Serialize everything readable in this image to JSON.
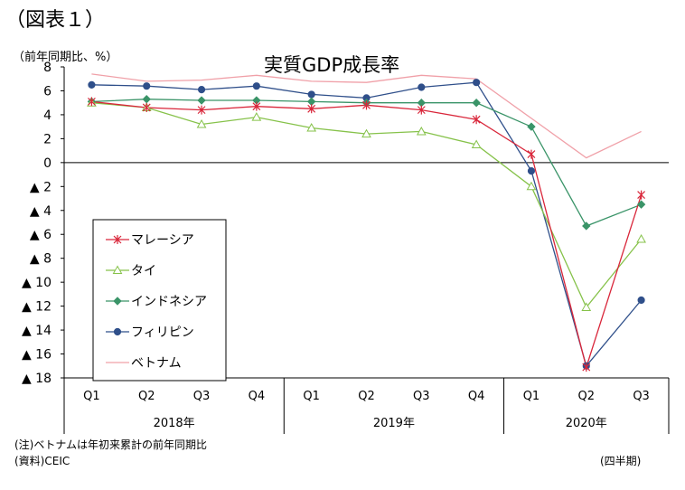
{
  "figure_label": "（図表１）",
  "footnotes": {
    "note": "(注)ベトナムは年初来累計の前年同期比",
    "source": "(資料)CEIC",
    "x_unit": "(四半期)"
  },
  "chart_data": {
    "type": "line",
    "title": "実質GDP成長率",
    "ylabel": "（前年同期比、%）",
    "ylim": [
      -18,
      8
    ],
    "yticks": [
      {
        "value": 8,
        "label": "8"
      },
      {
        "value": 6,
        "label": "6"
      },
      {
        "value": 4,
        "label": "4"
      },
      {
        "value": 2,
        "label": "2"
      },
      {
        "value": 0,
        "label": "0"
      },
      {
        "value": -2,
        "label": "▲ 2"
      },
      {
        "value": -4,
        "label": "▲ 4"
      },
      {
        "value": -6,
        "label": "▲ 6"
      },
      {
        "value": -8,
        "label": "▲ 8"
      },
      {
        "value": -10,
        "label": "▲ 10"
      },
      {
        "value": -12,
        "label": "▲ 12"
      },
      {
        "value": -14,
        "label": "▲ 14"
      },
      {
        "value": -16,
        "label": "▲ 16"
      },
      {
        "value": -18,
        "label": "▲ 18"
      }
    ],
    "categories": [
      "Q1",
      "Q2",
      "Q3",
      "Q4",
      "Q1",
      "Q2",
      "Q3",
      "Q4",
      "Q1",
      "Q2",
      "Q3"
    ],
    "year_groups": [
      {
        "label": "2018年",
        "count": 4
      },
      {
        "label": "2019年",
        "count": 4
      },
      {
        "label": "2020年",
        "count": 3
      }
    ],
    "legend_position": "left",
    "series": [
      {
        "name": "マレーシア",
        "color": "#d9263a",
        "marker": "asterisk",
        "values": [
          5.1,
          4.6,
          4.4,
          4.7,
          4.5,
          4.8,
          4.4,
          3.6,
          0.7,
          -17.1,
          -2.7
        ]
      },
      {
        "name": "タイ",
        "color": "#86c24a",
        "marker": "triangle",
        "values": [
          5.0,
          4.6,
          3.2,
          3.8,
          2.9,
          2.4,
          2.6,
          1.5,
          -2.0,
          -12.1,
          -6.4
        ]
      },
      {
        "name": "インドネシア",
        "color": "#3a9468",
        "marker": "diamond",
        "values": [
          5.1,
          5.3,
          5.2,
          5.2,
          5.1,
          5.0,
          5.0,
          5.0,
          3.0,
          -5.3,
          -3.5
        ]
      },
      {
        "name": "フィリピン",
        "color": "#2f4f8a",
        "marker": "circle",
        "values": [
          6.5,
          6.4,
          6.1,
          6.4,
          5.7,
          5.4,
          6.3,
          6.7,
          -0.7,
          -17.0,
          -11.5
        ]
      },
      {
        "name": "ベトナム",
        "color": "#f0a0a8",
        "marker": "none",
        "values": [
          7.4,
          6.8,
          6.9,
          7.3,
          6.8,
          6.7,
          7.3,
          7.0,
          3.7,
          0.4,
          2.6
        ]
      }
    ]
  }
}
